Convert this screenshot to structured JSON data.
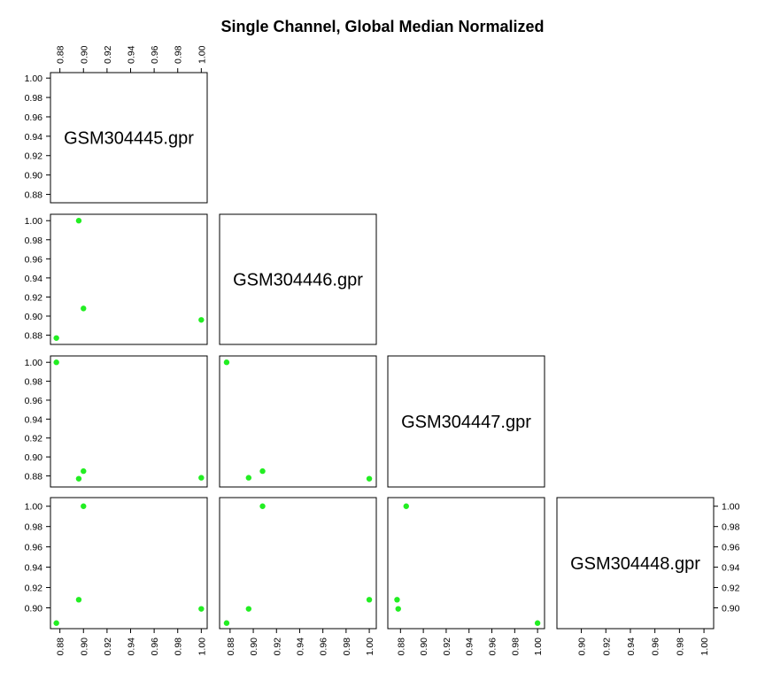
{
  "chart_data": {
    "type": "scatter",
    "title": "Single Channel, Global Median Normalized",
    "variables": [
      "GSM304445.gpr",
      "GSM304446.gpr",
      "GSM304447.gpr",
      "GSM304448.gpr"
    ],
    "values": [
      [
        0.877,
        0.896,
        0.9,
        1.0
      ],
      [
        0.877,
        1.0,
        0.908,
        0.896
      ],
      [
        1.0,
        0.877,
        0.885,
        0.878
      ],
      [
        0.885,
        0.908,
        1.0,
        0.899
      ]
    ],
    "ticks": [
      "0.88",
      "0.90",
      "0.92",
      "0.94",
      "0.96",
      "0.98",
      "1.00"
    ],
    "axis_ranges": {
      "GSM304445.gpr": [
        0.875,
        1.002
      ],
      "GSM304446.gpr": [
        0.874,
        1.003
      ],
      "GSM304447.gpr": [
        0.872,
        1.003
      ],
      "GSM304448.gpr": [
        0.883,
        1.005
      ]
    },
    "panel_layout": "lower-triangle",
    "point_color": "#22ee22",
    "grid": false
  }
}
